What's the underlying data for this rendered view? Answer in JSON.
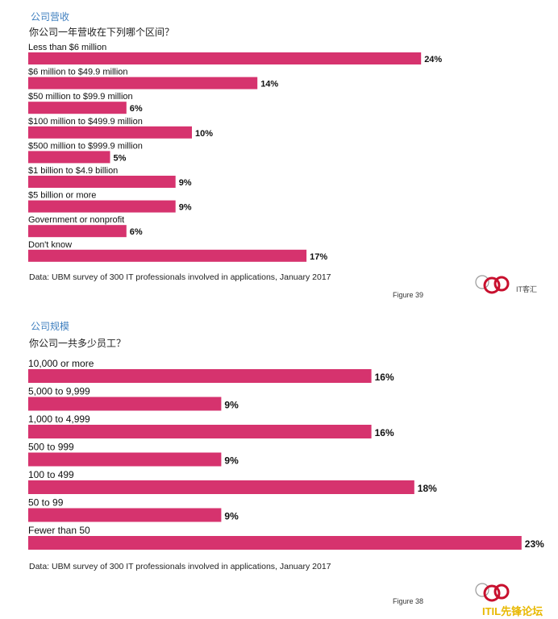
{
  "watermark": {
    "text": "IT客汇",
    "forum": "ITIL先锋论坛"
  },
  "charts_meta": [
    {
      "section_title": "公司营收",
      "question": "你公司一年营收在下列哪个区间？",
      "source": "Data: UBM survey of 300 IT professionals involved in applications, January 2017",
      "figure": "Figure 39"
    },
    {
      "section_title": "公司规模",
      "question": "你公司一共多少员工？",
      "source": "Data: UBM survey of 300 IT professionals involved in applications, January 2017",
      "figure": "Figure 38"
    }
  ],
  "chart_data": [
    {
      "type": "bar",
      "orientation": "horizontal",
      "title": "公司营收",
      "categories": [
        "Less than $6 million",
        "$6 million to $49.9 million",
        "$50 million to $99.9 million",
        "$100 million to $499.9 million",
        "$500 million to $999.9 million",
        "$1 billion to $4.9 billion",
        "$5 billion or more",
        "Government or nonprofit",
        "Don't know"
      ],
      "values": [
        24,
        14,
        6,
        10,
        5,
        9,
        9,
        6,
        17
      ],
      "value_labels": [
        "24%",
        "14%",
        "6%",
        "10%",
        "5%",
        "9%",
        "9%",
        "6%",
        "17%"
      ],
      "unit": "%",
      "bar_color": "#d6336e"
    },
    {
      "type": "bar",
      "orientation": "horizontal",
      "title": "公司规模",
      "categories": [
        "10,000 or more",
        "5,000 to 9,999",
        "1,000 to 4,999",
        "500 to 999",
        "100 to 499",
        "50 to 99",
        "Fewer than 50"
      ],
      "values": [
        16,
        9,
        16,
        9,
        18,
        9,
        23
      ],
      "value_labels": [
        "16%",
        "9%",
        "16%",
        "9%",
        "18%",
        "9%",
        "23%"
      ],
      "unit": "%",
      "bar_color": "#d6336e"
    }
  ]
}
